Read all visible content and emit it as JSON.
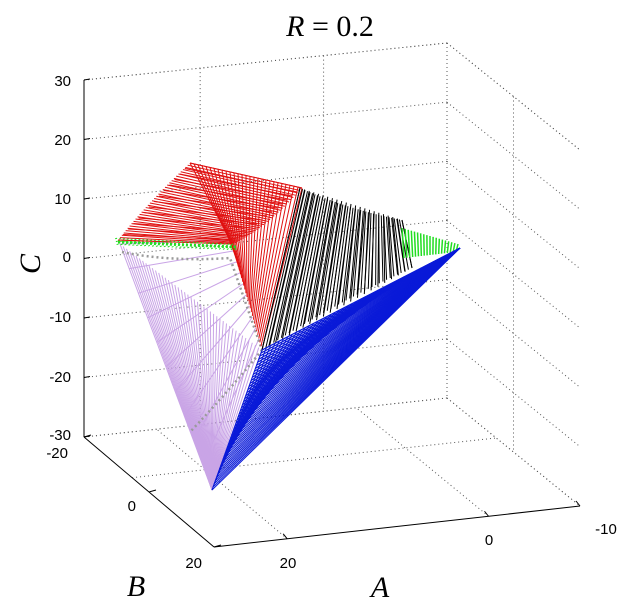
{
  "chart_data": {
    "type": "3d-surface",
    "title": "R = 0.2",
    "title_parts": {
      "variable": "R",
      "rest": " = 0.2"
    },
    "xlabel": "A",
    "ylabel": "B",
    "zlabel": "C",
    "x_ticks": [
      "20",
      "0",
      "-10"
    ],
    "y_ticks": [
      "-20",
      "0",
      "20"
    ],
    "z_ticks": [
      "30",
      "20",
      "10",
      "0",
      "-10",
      "-20",
      "-30"
    ],
    "xlim": [
      -10,
      25
    ],
    "ylim": [
      -20,
      20
    ],
    "zlim": [
      -30,
      30
    ],
    "grid": true,
    "series": [
      {
        "colour": "red"
      },
      {
        "colour": "black"
      },
      {
        "colour": "green"
      },
      {
        "colour": "blue"
      },
      {
        "colour": "plum"
      },
      {
        "colour": "gray"
      }
    ]
  }
}
